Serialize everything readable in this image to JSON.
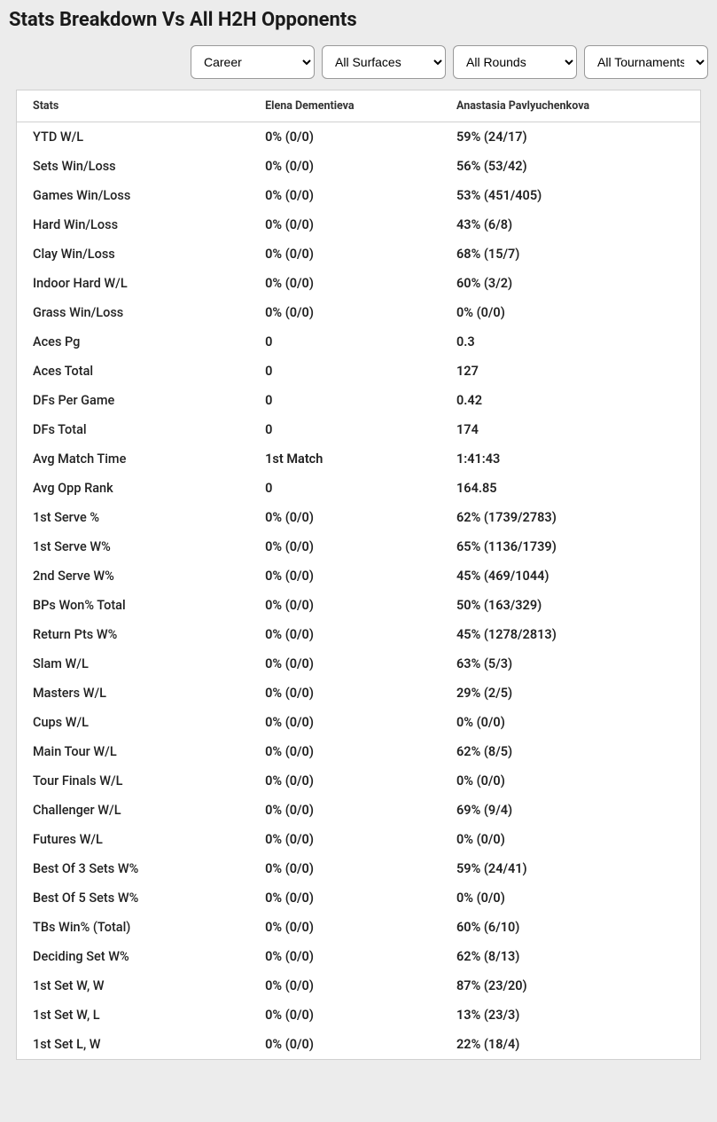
{
  "title": "Stats Breakdown Vs All H2H Opponents",
  "filters": {
    "period": {
      "selected": "Career",
      "options": [
        "Career"
      ]
    },
    "surface": {
      "selected": "All Surfaces",
      "options": [
        "All Surfaces"
      ]
    },
    "rounds": {
      "selected": "All Rounds",
      "options": [
        "All Rounds"
      ]
    },
    "tournaments": {
      "selected": "All Tournaments",
      "options": [
        "All Tournaments"
      ]
    }
  },
  "table": {
    "headers": {
      "stats": "Stats",
      "player1": "Elena Dementieva",
      "player2": "Anastasia Pavlyuchenkova"
    },
    "rows": [
      {
        "stat": "YTD W/L",
        "p1": "0% (0/0)",
        "p2": "59% (24/17)"
      },
      {
        "stat": "Sets Win/Loss",
        "p1": "0% (0/0)",
        "p2": "56% (53/42)"
      },
      {
        "stat": "Games Win/Loss",
        "p1": "0% (0/0)",
        "p2": "53% (451/405)"
      },
      {
        "stat": "Hard Win/Loss",
        "p1": "0% (0/0)",
        "p2": "43% (6/8)"
      },
      {
        "stat": "Clay Win/Loss",
        "p1": "0% (0/0)",
        "p2": "68% (15/7)"
      },
      {
        "stat": "Indoor Hard W/L",
        "p1": "0% (0/0)",
        "p2": "60% (3/2)"
      },
      {
        "stat": "Grass Win/Loss",
        "p1": "0% (0/0)",
        "p2": "0% (0/0)"
      },
      {
        "stat": "Aces Pg",
        "p1": "0",
        "p2": "0.3"
      },
      {
        "stat": "Aces Total",
        "p1": "0",
        "p2": "127"
      },
      {
        "stat": "DFs Per Game",
        "p1": "0",
        "p2": "0.42"
      },
      {
        "stat": "DFs Total",
        "p1": "0",
        "p2": "174"
      },
      {
        "stat": "Avg Match Time",
        "p1": "1st Match",
        "p2": "1:41:43"
      },
      {
        "stat": "Avg Opp Rank",
        "p1": "0",
        "p2": "164.85"
      },
      {
        "stat": "1st Serve %",
        "p1": "0% (0/0)",
        "p2": "62% (1739/2783)"
      },
      {
        "stat": "1st Serve W%",
        "p1": "0% (0/0)",
        "p2": "65% (1136/1739)"
      },
      {
        "stat": "2nd Serve W%",
        "p1": "0% (0/0)",
        "p2": "45% (469/1044)"
      },
      {
        "stat": "BPs Won% Total",
        "p1": "0% (0/0)",
        "p2": "50% (163/329)"
      },
      {
        "stat": "Return Pts W%",
        "p1": "0% (0/0)",
        "p2": "45% (1278/2813)"
      },
      {
        "stat": "Slam W/L",
        "p1": "0% (0/0)",
        "p2": "63% (5/3)"
      },
      {
        "stat": "Masters W/L",
        "p1": "0% (0/0)",
        "p2": "29% (2/5)"
      },
      {
        "stat": "Cups W/L",
        "p1": "0% (0/0)",
        "p2": "0% (0/0)"
      },
      {
        "stat": "Main Tour W/L",
        "p1": "0% (0/0)",
        "p2": "62% (8/5)"
      },
      {
        "stat": "Tour Finals W/L",
        "p1": "0% (0/0)",
        "p2": "0% (0/0)"
      },
      {
        "stat": "Challenger W/L",
        "p1": "0% (0/0)",
        "p2": "69% (9/4)"
      },
      {
        "stat": "Futures W/L",
        "p1": "0% (0/0)",
        "p2": "0% (0/0)"
      },
      {
        "stat": "Best Of 3 Sets W%",
        "p1": "0% (0/0)",
        "p2": "59% (24/41)"
      },
      {
        "stat": "Best Of 5 Sets W%",
        "p1": "0% (0/0)",
        "p2": "0% (0/0)"
      },
      {
        "stat": "TBs Win% (Total)",
        "p1": "0% (0/0)",
        "p2": "60% (6/10)"
      },
      {
        "stat": "Deciding Set W%",
        "p1": "0% (0/0)",
        "p2": "62% (8/13)"
      },
      {
        "stat": "1st Set W, W",
        "p1": "0% (0/0)",
        "p2": "87% (23/20)"
      },
      {
        "stat": "1st Set W, L",
        "p1": "0% (0/0)",
        "p2": "13% (23/3)"
      },
      {
        "stat": "1st Set L, W",
        "p1": "0% (0/0)",
        "p2": "22% (18/4)"
      }
    ]
  }
}
